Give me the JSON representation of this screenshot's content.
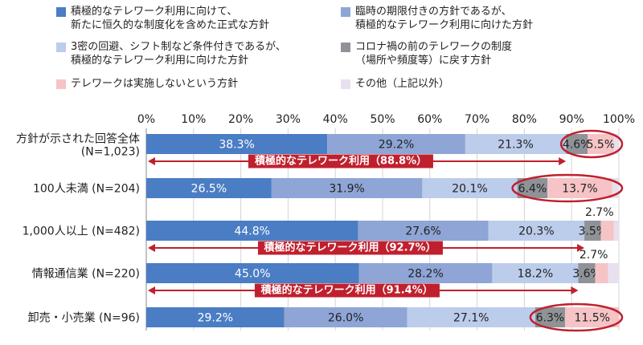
{
  "colors": {
    "seg1": "#4a7dc4",
    "seg2": "#8ea5d6",
    "seg3": "#bccceb",
    "seg4": "#8f9296",
    "seg5": "#f6c4c6",
    "seg6": "#e7e0ee",
    "accent": "#c0202e"
  },
  "legend": [
    {
      "lines": [
        "積極的なテレワーク利用に向けて、",
        "新たに恒久的な制度化を含めた正式な方針"
      ]
    },
    {
      "lines": [
        "臨時の期限付きの方針であるが、",
        "積極的なテレワーク利用に向けた方針"
      ]
    },
    {
      "lines": [
        "3密の回避、シフト制など条件付きであるが、",
        "積極的なテレワーク利用に向けた方針"
      ]
    },
    {
      "lines": [
        "コロナ禍の前のテレワークの制度",
        "（場所や頻度等）に戻す方針"
      ]
    },
    {
      "lines": [
        "テレワークは実施しないという方針"
      ]
    },
    {
      "lines": [
        "その他（上記以外）"
      ]
    }
  ],
  "chart_data": {
    "type": "bar",
    "orientation": "horizontal",
    "stacked": true,
    "xlim": [
      0,
      100
    ],
    "ticks": [
      "0%",
      "10%",
      "20%",
      "30%",
      "40%",
      "50%",
      "60%",
      "70%",
      "80%",
      "90%",
      "100%"
    ],
    "categories": [
      {
        "lines": [
          "方針が示された回答全体",
          "(N=1,023)"
        ]
      },
      {
        "lines": [
          "100人未満 (N=204)"
        ]
      },
      {
        "lines": [
          "1,000人以上 (N=482)"
        ]
      },
      {
        "lines": [
          "情報通信業 (N=220)"
        ]
      },
      {
        "lines": [
          "卸売・小売業 (N=96)"
        ]
      }
    ],
    "series": [
      {
        "name": "積極的なテレワーク利用に向けて、新たに恒久的な制度化を含めた正式な方針",
        "values": [
          38.3,
          26.5,
          44.8,
          45.0,
          29.2
        ]
      },
      {
        "name": "臨時の期限付きの方針であるが、積極的なテレワーク利用に向けた方針",
        "values": [
          29.2,
          31.9,
          27.6,
          28.2,
          26.0
        ]
      },
      {
        "name": "3密の回避、シフト制など条件付きであるが、積極的なテレワーク利用に向けた方針",
        "values": [
          21.3,
          20.1,
          20.3,
          18.2,
          27.1
        ]
      },
      {
        "name": "コロナ禍の前のテレワークの制度（場所や頻度等）に戻す方針",
        "values": [
          4.6,
          6.4,
          3.5,
          3.6,
          6.3
        ]
      },
      {
        "name": "テレワークは実施しないという方針",
        "values": [
          5.5,
          13.7,
          2.7,
          2.7,
          11.5
        ]
      },
      {
        "name": "その他（上記以外）",
        "values": [
          1.1,
          1.4,
          1.1,
          2.3,
          0.0
        ]
      }
    ],
    "data_labels": [
      [
        "38.3%",
        "29.2%",
        "21.3%",
        "4.6%",
        "5.5%",
        ""
      ],
      [
        "26.5%",
        "31.9%",
        "20.1%",
        "6.4%",
        "13.7%",
        ""
      ],
      [
        "44.8%",
        "27.6%",
        "20.3%",
        "3.5%",
        "2.7%",
        ""
      ],
      [
        "45.0%",
        "28.2%",
        "18.2%",
        "3.6%",
        "2.7%",
        ""
      ],
      [
        "29.2%",
        "26.0%",
        "27.1%",
        "6.3%",
        "11.5%",
        ""
      ]
    ],
    "annotations": [
      {
        "text": "積極的なテレワーク利用（88.8%）",
        "after_row": 0,
        "value": 88.8
      },
      {
        "text": "積極的なテレワーク利用（92.7%）",
        "after_row": 2,
        "value": 92.7
      },
      {
        "text": "積極的なテレワーク利用（91.4%）",
        "after_row": 3,
        "value": 91.4
      }
    ],
    "highlighted_rows": [
      0,
      1,
      4
    ]
  }
}
